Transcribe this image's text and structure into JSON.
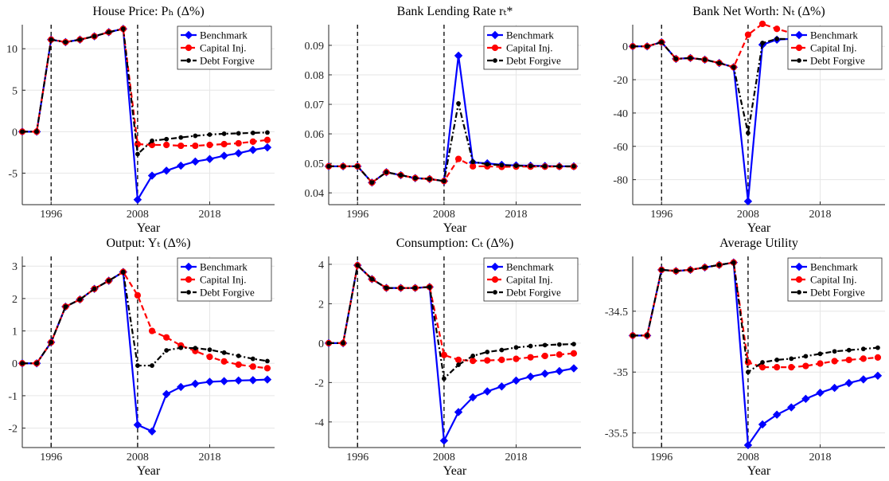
{
  "chart_data": [
    {
      "type": "line",
      "title": "House Price: Pₕ (Δ%)",
      "xlabel": "Year",
      "x": [
        1992,
        1994,
        1996,
        1998,
        2000,
        2002,
        2004,
        2006,
        2008,
        2010,
        2012,
        2014,
        2016,
        2018,
        2020,
        2022,
        2024,
        2026
      ],
      "xlim": [
        1992,
        2027
      ],
      "xticks": [
        1996,
        2008,
        2018
      ],
      "ylim": [
        -8.8,
        12.9
      ],
      "yticks": [
        -5,
        0,
        5,
        10
      ],
      "vlines": [
        1996,
        2008
      ],
      "grid": true,
      "legend": "upper right",
      "series": [
        {
          "name": "Benchmark",
          "color": "#0000ff",
          "marker": "diamond",
          "dash": "solid",
          "values": [
            0,
            0,
            11.1,
            10.8,
            11.1,
            11.5,
            12.0,
            12.4,
            -8.2,
            -5.3,
            -4.7,
            -4.1,
            -3.6,
            -3.3,
            -2.9,
            -2.6,
            -2.2,
            -1.9
          ]
        },
        {
          "name": "Capital Inj.",
          "color": "#ff0000",
          "marker": "circle",
          "dash": "dashed",
          "values": [
            0,
            0,
            11.1,
            10.8,
            11.1,
            11.5,
            12.0,
            12.4,
            -1.5,
            -1.6,
            -1.6,
            -1.7,
            -1.7,
            -1.6,
            -1.5,
            -1.4,
            -1.2,
            -1.0
          ]
        },
        {
          "name": "Debt Forgive",
          "color": "#000000",
          "marker": "dot",
          "dash": "dashdot",
          "values": [
            0,
            0,
            11.1,
            10.8,
            11.1,
            11.5,
            12.0,
            12.4,
            -2.7,
            -1.1,
            -0.9,
            -0.7,
            -0.5,
            -0.35,
            -0.25,
            -0.2,
            -0.15,
            -0.1
          ]
        }
      ]
    },
    {
      "type": "line",
      "title": "Bank Lending Rate rₜ*",
      "xlabel": "Year",
      "x": [
        1992,
        1994,
        1996,
        1998,
        2000,
        2002,
        2004,
        2006,
        2008,
        2010,
        2012,
        2014,
        2016,
        2018,
        2020,
        2022,
        2024,
        2026
      ],
      "xlim": [
        1992,
        2027
      ],
      "xticks": [
        1996,
        2008,
        2018
      ],
      "ylim": [
        0.036,
        0.097
      ],
      "yticks": [
        0.04,
        0.05,
        0.06,
        0.07,
        0.08,
        0.09
      ],
      "vlines": [
        1996,
        2008
      ],
      "grid": true,
      "legend": "upper right",
      "series": [
        {
          "name": "Benchmark",
          "color": "#0000ff",
          "marker": "diamond",
          "dash": "solid",
          "values": [
            0.049,
            0.049,
            0.049,
            0.0435,
            0.047,
            0.046,
            0.045,
            0.0447,
            0.044,
            0.0865,
            0.0503,
            0.05,
            0.0495,
            0.0493,
            0.0492,
            0.0491,
            0.049,
            0.049
          ]
        },
        {
          "name": "Capital Inj.",
          "color": "#ff0000",
          "marker": "circle",
          "dash": "dashed",
          "values": [
            0.049,
            0.049,
            0.049,
            0.0435,
            0.047,
            0.046,
            0.045,
            0.0447,
            0.044,
            0.0515,
            0.049,
            0.049,
            0.0488,
            0.0489,
            0.0489,
            0.0489,
            0.0489,
            0.0489
          ]
        },
        {
          "name": "Debt Forgive",
          "color": "#000000",
          "marker": "dot",
          "dash": "dashdot",
          "values": [
            0.049,
            0.049,
            0.049,
            0.0435,
            0.047,
            0.046,
            0.045,
            0.0447,
            0.044,
            0.0703,
            0.0505,
            0.0497,
            0.0494,
            0.0492,
            0.0491,
            0.049,
            0.049,
            0.049
          ]
        }
      ]
    },
    {
      "type": "line",
      "title": "Bank Net Worth: Nₜ (Δ%)",
      "xlabel": "Year",
      "x": [
        1992,
        1994,
        1996,
        1998,
        2000,
        2002,
        2004,
        2006,
        2008,
        2010,
        2012,
        2014,
        2016,
        2018,
        2020,
        2022,
        2024,
        2026
      ],
      "xlim": [
        1992,
        2027
      ],
      "xticks": [
        1996,
        2008,
        2018
      ],
      "ylim": [
        -95,
        13
      ],
      "yticks": [
        -80,
        -60,
        -40,
        -20,
        0
      ],
      "vlines": [
        1996,
        2008
      ],
      "grid": true,
      "legend": "upper right",
      "series": [
        {
          "name": "Benchmark",
          "color": "#0000ff",
          "marker": "diamond",
          "dash": "solid",
          "values": [
            0,
            0,
            2.5,
            -7.5,
            -7,
            -8,
            -10,
            -12.5,
            -93,
            1,
            4,
            4.5,
            4.2,
            3.8,
            3.4,
            3.0,
            2.7,
            2.4
          ]
        },
        {
          "name": "Capital Inj.",
          "color": "#ff0000",
          "marker": "circle",
          "dash": "dashed",
          "values": [
            0,
            0,
            2.5,
            -7.5,
            -7,
            -8,
            -10,
            -12.5,
            7,
            13.5,
            10.5,
            8,
            6,
            4.5,
            3.3,
            2.4,
            1.7,
            1.2
          ]
        },
        {
          "name": "Debt Forgive",
          "color": "#000000",
          "marker": "dot",
          "dash": "dashdot",
          "values": [
            0,
            0,
            2.5,
            -7.5,
            -7,
            -8,
            -10,
            -12.5,
            -52,
            2,
            4.5,
            4.3,
            3.8,
            3.2,
            2.6,
            2.0,
            1.5,
            1.1
          ]
        }
      ]
    },
    {
      "type": "line",
      "title": "Output: Yₜ (Δ%)",
      "xlabel": "Year",
      "x": [
        1992,
        1994,
        1996,
        1998,
        2000,
        2002,
        2004,
        2006,
        2008,
        2010,
        2012,
        2014,
        2016,
        2018,
        2020,
        2022,
        2024,
        2026
      ],
      "xlim": [
        1992,
        2027
      ],
      "xticks": [
        1996,
        2008,
        2018
      ],
      "ylim": [
        -2.6,
        3.3
      ],
      "yticks": [
        -2,
        -1,
        0,
        1,
        2,
        3
      ],
      "vlines": [
        1996,
        2008
      ],
      "grid": true,
      "legend": "upper right",
      "series": [
        {
          "name": "Benchmark",
          "color": "#0000ff",
          "marker": "diamond",
          "dash": "solid",
          "values": [
            0,
            0,
            0.65,
            1.75,
            1.97,
            2.3,
            2.55,
            2.82,
            -1.9,
            -2.1,
            -0.95,
            -0.73,
            -0.63,
            -0.57,
            -0.55,
            -0.53,
            -0.52,
            -0.5
          ]
        },
        {
          "name": "Capital Inj.",
          "color": "#ff0000",
          "marker": "circle",
          "dash": "dashed",
          "values": [
            0,
            0,
            0.65,
            1.75,
            1.97,
            2.3,
            2.55,
            2.82,
            2.1,
            1.0,
            0.8,
            0.55,
            0.38,
            0.2,
            0.06,
            -0.04,
            -0.1,
            -0.15
          ]
        },
        {
          "name": "Debt Forgive",
          "color": "#000000",
          "marker": "dot",
          "dash": "dashdot",
          "values": [
            0,
            0,
            0.65,
            1.75,
            1.97,
            2.3,
            2.55,
            2.82,
            -0.07,
            -0.07,
            0.4,
            0.48,
            0.47,
            0.42,
            0.33,
            0.23,
            0.14,
            0.07
          ]
        }
      ]
    },
    {
      "type": "line",
      "title": "Consumption: Cₜ (Δ%)",
      "xlabel": "Year",
      "x": [
        1992,
        1994,
        1996,
        1998,
        2000,
        2002,
        2004,
        2006,
        2008,
        2010,
        2012,
        2014,
        2016,
        2018,
        2020,
        2022,
        2024,
        2026
      ],
      "xlim": [
        1992,
        2027
      ],
      "xticks": [
        1996,
        2008,
        2018
      ],
      "ylim": [
        -5.3,
        4.4
      ],
      "yticks": [
        -4,
        -2,
        0,
        2,
        4
      ],
      "vlines": [
        1996,
        2008
      ],
      "grid": true,
      "legend": "upper right",
      "series": [
        {
          "name": "Benchmark",
          "color": "#0000ff",
          "marker": "diamond",
          "dash": "solid",
          "values": [
            0,
            0,
            3.95,
            3.25,
            2.8,
            2.8,
            2.8,
            2.85,
            -4.95,
            -3.5,
            -2.75,
            -2.45,
            -2.2,
            -1.9,
            -1.7,
            -1.55,
            -1.42,
            -1.28
          ]
        },
        {
          "name": "Capital Inj.",
          "color": "#ff0000",
          "marker": "circle",
          "dash": "dashed",
          "values": [
            0,
            0,
            3.95,
            3.25,
            2.8,
            2.8,
            2.8,
            2.85,
            -0.6,
            -0.85,
            -0.9,
            -0.88,
            -0.85,
            -0.8,
            -0.72,
            -0.65,
            -0.58,
            -0.52
          ]
        },
        {
          "name": "Debt Forgive",
          "color": "#000000",
          "marker": "dot",
          "dash": "dashdot",
          "values": [
            0,
            0,
            3.95,
            3.25,
            2.8,
            2.8,
            2.8,
            2.85,
            -1.8,
            -1.1,
            -0.65,
            -0.45,
            -0.35,
            -0.22,
            -0.15,
            -0.1,
            -0.07,
            -0.05
          ]
        }
      ]
    },
    {
      "type": "line",
      "title": "Average Utility",
      "xlabel": "Year",
      "x": [
        1992,
        1994,
        1996,
        1998,
        2000,
        2002,
        2004,
        2006,
        2008,
        2010,
        2012,
        2014,
        2016,
        2018,
        2020,
        2022,
        2024,
        2026
      ],
      "xlim": [
        1992,
        2027
      ],
      "xticks": [
        1996,
        2008,
        2018
      ],
      "ylim": [
        -35.62,
        -34.05
      ],
      "yticks": [
        -35.5,
        -35,
        -34.5
      ],
      "vlines": [
        1996,
        2008
      ],
      "grid": true,
      "legend": "upper right",
      "series": [
        {
          "name": "Benchmark",
          "color": "#0000ff",
          "marker": "diamond",
          "dash": "solid",
          "values": [
            -34.7,
            -34.7,
            -34.16,
            -34.17,
            -34.16,
            -34.14,
            -34.12,
            -34.1,
            -35.6,
            -35.43,
            -35.35,
            -35.29,
            -35.22,
            -35.17,
            -35.13,
            -35.09,
            -35.06,
            -35.03
          ]
        },
        {
          "name": "Capital Inj.",
          "color": "#ff0000",
          "marker": "circle",
          "dash": "dashed",
          "values": [
            -34.7,
            -34.7,
            -34.16,
            -34.17,
            -34.16,
            -34.14,
            -34.12,
            -34.1,
            -34.92,
            -34.96,
            -34.96,
            -34.96,
            -34.95,
            -34.93,
            -34.91,
            -34.9,
            -34.89,
            -34.88
          ]
        },
        {
          "name": "Debt Forgive",
          "color": "#000000",
          "marker": "dot",
          "dash": "dashdot",
          "values": [
            -34.7,
            -34.7,
            -34.16,
            -34.17,
            -34.16,
            -34.14,
            -34.12,
            -34.1,
            -35.0,
            -34.92,
            -34.9,
            -34.89,
            -34.87,
            -34.85,
            -34.83,
            -34.82,
            -34.81,
            -34.8
          ]
        }
      ]
    }
  ]
}
